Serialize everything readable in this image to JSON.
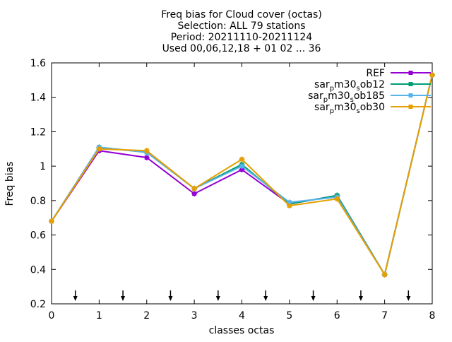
{
  "chart_data": {
    "type": "line",
    "title_lines": [
      "Freq bias  for Cloud cover (octas)",
      "Selection: ALL     79 stations",
      "Period: 20211110-20211124",
      "Used 00,06,12,18 + 01 02 ... 36"
    ],
    "xlabel": "classes octas",
    "ylabel": "Freq bias",
    "xlim": [
      0,
      8
    ],
    "ylim": [
      0.2,
      1.6
    ],
    "xticks": [
      0,
      1,
      2,
      3,
      4,
      5,
      6,
      7,
      8
    ],
    "yticks": [
      0.2,
      0.4,
      0.6,
      0.8,
      1,
      1.2,
      1.4,
      1.6
    ],
    "grid": false,
    "legend_position": "top-right",
    "x": [
      0,
      1,
      2,
      3,
      4,
      5,
      6,
      7,
      8
    ],
    "series": [
      {
        "name": "REF",
        "color": "#9400d3",
        "values": [
          0.68,
          1.09,
          1.05,
          0.84,
          0.98,
          0.78,
          0.83,
          0.37,
          1.53
        ]
      },
      {
        "name": "sar_pm30_sob12",
        "legend_parts": [
          "sar",
          "p",
          "m30",
          "s",
          "ob12"
        ],
        "color": "#009e73",
        "values": [
          0.68,
          1.11,
          1.08,
          0.87,
          1.01,
          0.78,
          0.83,
          0.37,
          1.53
        ]
      },
      {
        "name": "sar_pm30_sob185",
        "legend_parts": [
          "sar",
          "p",
          "m30",
          "s",
          "ob185"
        ],
        "color": "#56b4e9",
        "values": [
          0.68,
          1.11,
          1.08,
          0.87,
          1.0,
          0.79,
          0.82,
          0.37,
          1.53
        ]
      },
      {
        "name": "sar_pm30_sob30",
        "legend_parts": [
          "sar",
          "p",
          "m30",
          "s",
          "ob30"
        ],
        "color": "#e69f00",
        "values": [
          0.68,
          1.1,
          1.09,
          0.87,
          1.04,
          0.77,
          0.81,
          0.37,
          1.53
        ]
      }
    ],
    "arrows_x": [
      0.5,
      1.5,
      2.5,
      3.5,
      4.5,
      5.5,
      6.5,
      7.5
    ]
  }
}
